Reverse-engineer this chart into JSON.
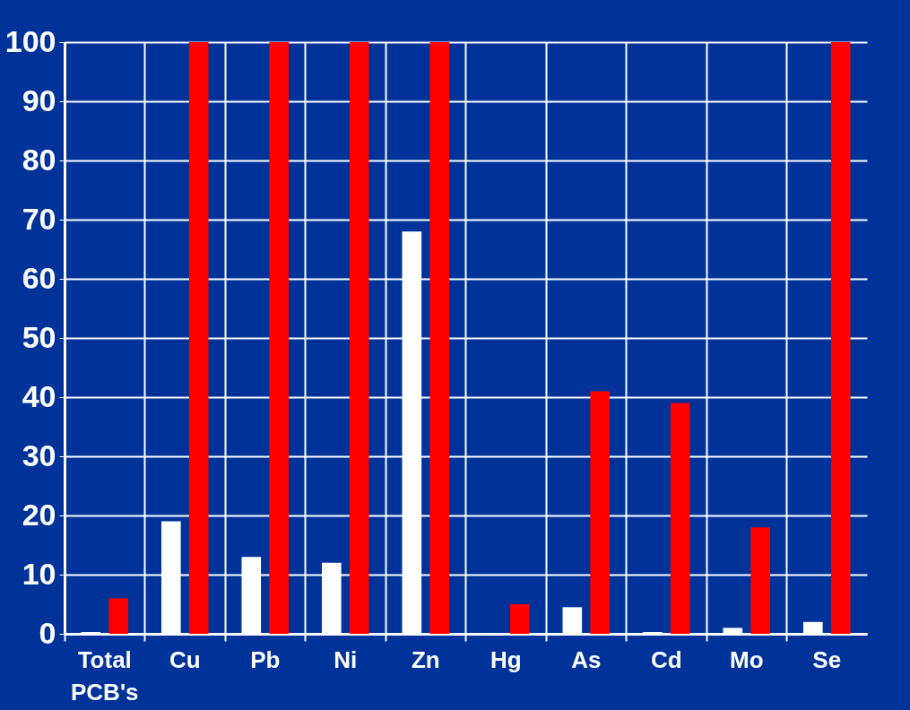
{
  "chart_data": {
    "type": "bar",
    "categories": [
      "Total PCB's",
      "Cu",
      "Pb",
      "Ni",
      "Zn",
      "Hg",
      "As",
      "Cd",
      "Mo",
      "Se"
    ],
    "series": [
      {
        "color": "#ffffff",
        "values": [
          0.3,
          19,
          13,
          12,
          68,
          0,
          4.5,
          0.3,
          1,
          2
        ]
      },
      {
        "color": "#ff0000",
        "values": [
          6,
          100,
          100,
          100,
          100,
          5,
          41,
          39,
          18,
          100
        ]
      }
    ],
    "ylim": [
      0,
      100
    ],
    "yticks": [
      0,
      10,
      20,
      30,
      40,
      50,
      60,
      70,
      80,
      90,
      100
    ],
    "grid": true
  }
}
